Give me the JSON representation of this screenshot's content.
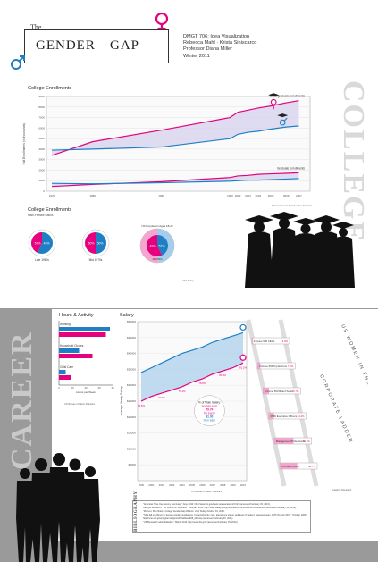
{
  "header": {
    "title_the": "The",
    "title_gender": "GENDER",
    "title_gap": "GAP",
    "credits": [
      "DMGT 706: Idea Visualization",
      "Rebecca Mahl · Krista Siniscarco",
      "Professor Diana Miller",
      "Winter 2011"
    ]
  },
  "side_words": {
    "college": "COLLEGE",
    "career": "CAREER"
  },
  "colors": {
    "women": "#e6007e",
    "men": "#1f7fc4",
    "women_fill": "#f4a6cf",
    "men_fill": "#a6cdea",
    "gap_fill": "#d8d3ee",
    "panel_grey": "#9a9a9a"
  },
  "enrollments": {
    "title": "College Enrollments",
    "ylabel": "Fall Enrollments (in thousands)",
    "undergrad_label": "Undergraduate Enrollments",
    "grad_label": "Graduate Enrollments",
    "source": "National Center for Education Statistics",
    "y_ticks": [
      "9000",
      "8000",
      "7000",
      "6000",
      "5000",
      "4000",
      "3000",
      "2000",
      "1000",
      "0"
    ],
    "x_ticks": [
      "1970",
      "1980",
      "1990",
      "2000",
      "2002",
      "2003",
      "2004",
      "2005",
      "2006",
      "2007"
    ]
  },
  "ratios": {
    "title": "College Enrollments",
    "subtitle": "Male-Female Ratios",
    "pies": [
      {
        "label": "Late 1960s",
        "men": "57%",
        "women": "43%"
      },
      {
        "label": "Mid 1970s",
        "men": "50%",
        "women": "50%"
      },
      {
        "label": "2010",
        "men": "43%",
        "women": "57%",
        "top_label": "US Population Ages 18-24",
        "inner_label": "49%/51%"
      }
    ],
    "source": "USA Today"
  },
  "hours": {
    "title": "Hours & Activity",
    "items": [
      "Working",
      "Household Chores",
      "Child Care"
    ],
    "xlabel": "Hours per Week",
    "x_ticks": [
      "0",
      "10",
      "20",
      "30",
      "40"
    ],
    "source": "US Bureau of Labor Statistics"
  },
  "chart_data": [
    {
      "type": "line",
      "title": "College Enrollments",
      "xlabel": "",
      "ylabel": "Fall Enrollments (in thousands)",
      "x": [
        1970,
        1980,
        1990,
        2000,
        2002,
        2003,
        2004,
        2005,
        2006,
        2007
      ],
      "ylim": [
        0,
        9000
      ],
      "series": [
        {
          "name": "Undergraduate Enrollments",
          "gender": "women",
          "values": [
            3400,
            4700,
            5800,
            7000,
            7500,
            7700,
            7900,
            8100,
            8400,
            8600
          ]
        },
        {
          "name": "Undergraduate Enrollments",
          "gender": "men",
          "values": [
            3900,
            4000,
            4200,
            5000,
            5400,
            5600,
            5700,
            5900,
            6100,
            6200
          ]
        },
        {
          "name": "Graduate Enrollments",
          "gender": "women",
          "values": [
            450,
            650,
            900,
            1300,
            1450,
            1500,
            1600,
            1650,
            1700,
            1750
          ]
        },
        {
          "name": "Graduate Enrollments",
          "gender": "men",
          "values": [
            750,
            700,
            800,
            950,
            1000,
            1050,
            1050,
            1100,
            1150,
            1200
          ]
        }
      ]
    },
    {
      "type": "bar",
      "title": "Hours & Activity",
      "xlabel": "Hours per Week",
      "categories": [
        "Working",
        "Household Chores",
        "Child Care"
      ],
      "xlim": [
        0,
        40
      ],
      "series": [
        {
          "gender": "men",
          "values": [
            38,
            15,
            5
          ]
        },
        {
          "gender": "women",
          "values": [
            35,
            25,
            9
          ]
        }
      ]
    },
    {
      "type": "line",
      "title": "Salary",
      "xlabel": "",
      "ylabel": "Average Yearly Salary",
      "x": [
        2000,
        2001,
        2002,
        2003,
        2004,
        2005,
        2006,
        2007,
        2008,
        2009,
        2010
      ],
      "ylim": [
        0,
        50000
      ],
      "y_ticks": [
        "$50000",
        "$45000",
        "$40000",
        "$35000",
        "$30000",
        "$25000",
        "$20000",
        "$15000",
        "$10000",
        "$5000"
      ],
      "series": [
        {
          "gender": "men",
          "values": [
            34000,
            35500,
            37000,
            38500,
            40000,
            41000,
            42000,
            43500,
            44500,
            45500,
            46500
          ]
        },
        {
          "gender": "women",
          "values": [
            25000,
            26500,
            27500,
            28500,
            29500,
            31000,
            32000,
            33500,
            34500,
            35500,
            37000
          ]
        }
      ],
      "annotations": [
        "75.5%",
        "77.0%",
        "79.1%",
        "78.8%",
        "80.3%",
        "81.2%"
      ],
      "source": "US Bureau of Labor Statistics"
    }
  ],
  "salary": {
    "title": "Salary",
    "note_lines": [
      "% of Male Salary:",
      "woman earn",
      "79.7¢",
      "for every",
      "$1.00",
      "men earn"
    ],
    "x_ticks": [
      "2000",
      "2001",
      "2002",
      "2003",
      "2004",
      "2005",
      "2006",
      "2007",
      "2008",
      "2009",
      "2010"
    ]
  },
  "ladder": {
    "title_words": [
      "US WOMEN IN THE WORKFORCE",
      "CORPORATE LADDER"
    ],
    "rungs": [
      {
        "label": "Fortune 500 CEOs",
        "value": "3.0%"
      },
      {
        "label": "Fortune 500 Top Earners",
        "value": "7.6%"
      },
      {
        "label": "Fortune 500 Board Seats",
        "value": "15.7%"
      },
      {
        "label": "F500 Executive Officers",
        "value": "14.4%"
      },
      {
        "label": "Management/Professional",
        "value": "51.5%"
      },
      {
        "label": "US Labor Force",
        "value": "46.7%"
      }
    ],
    "source": "Catalyst Research"
  },
  "bibliography": {
    "title": "BIBLIOGRAPHY",
    "entries": [
      "\"Americas Time Use Survey Summary.\" June 2010. http://www.bls.gov/news.release/atus.nr0.htm (accessed February 15, 2010).",
      "Catalyst Research. \"US Women in Business.\" February 2011. http://www.catalyst.org/publication/132/us-women-in-business (accessed February 15, 2010).",
      "\"Women: Men Ratio.\" College Gender Gap Widens. USA Today. October 19, 2006.",
      "\"Total fall enrollment in degree-granting institutions, by sex/ethnicity, race, attendance status, and level of student: Selected years, 1976 through 2007.\" October 2008. http://nces.ed.gov/programs/digest/d08/tables/dt08_226.asp (accessed February 16, 2011).",
      "\"US Bureau of Labor Statistics.\" March 2010. http://www.bls.gov/ (accessed February 15, 2010)."
    ]
  }
}
